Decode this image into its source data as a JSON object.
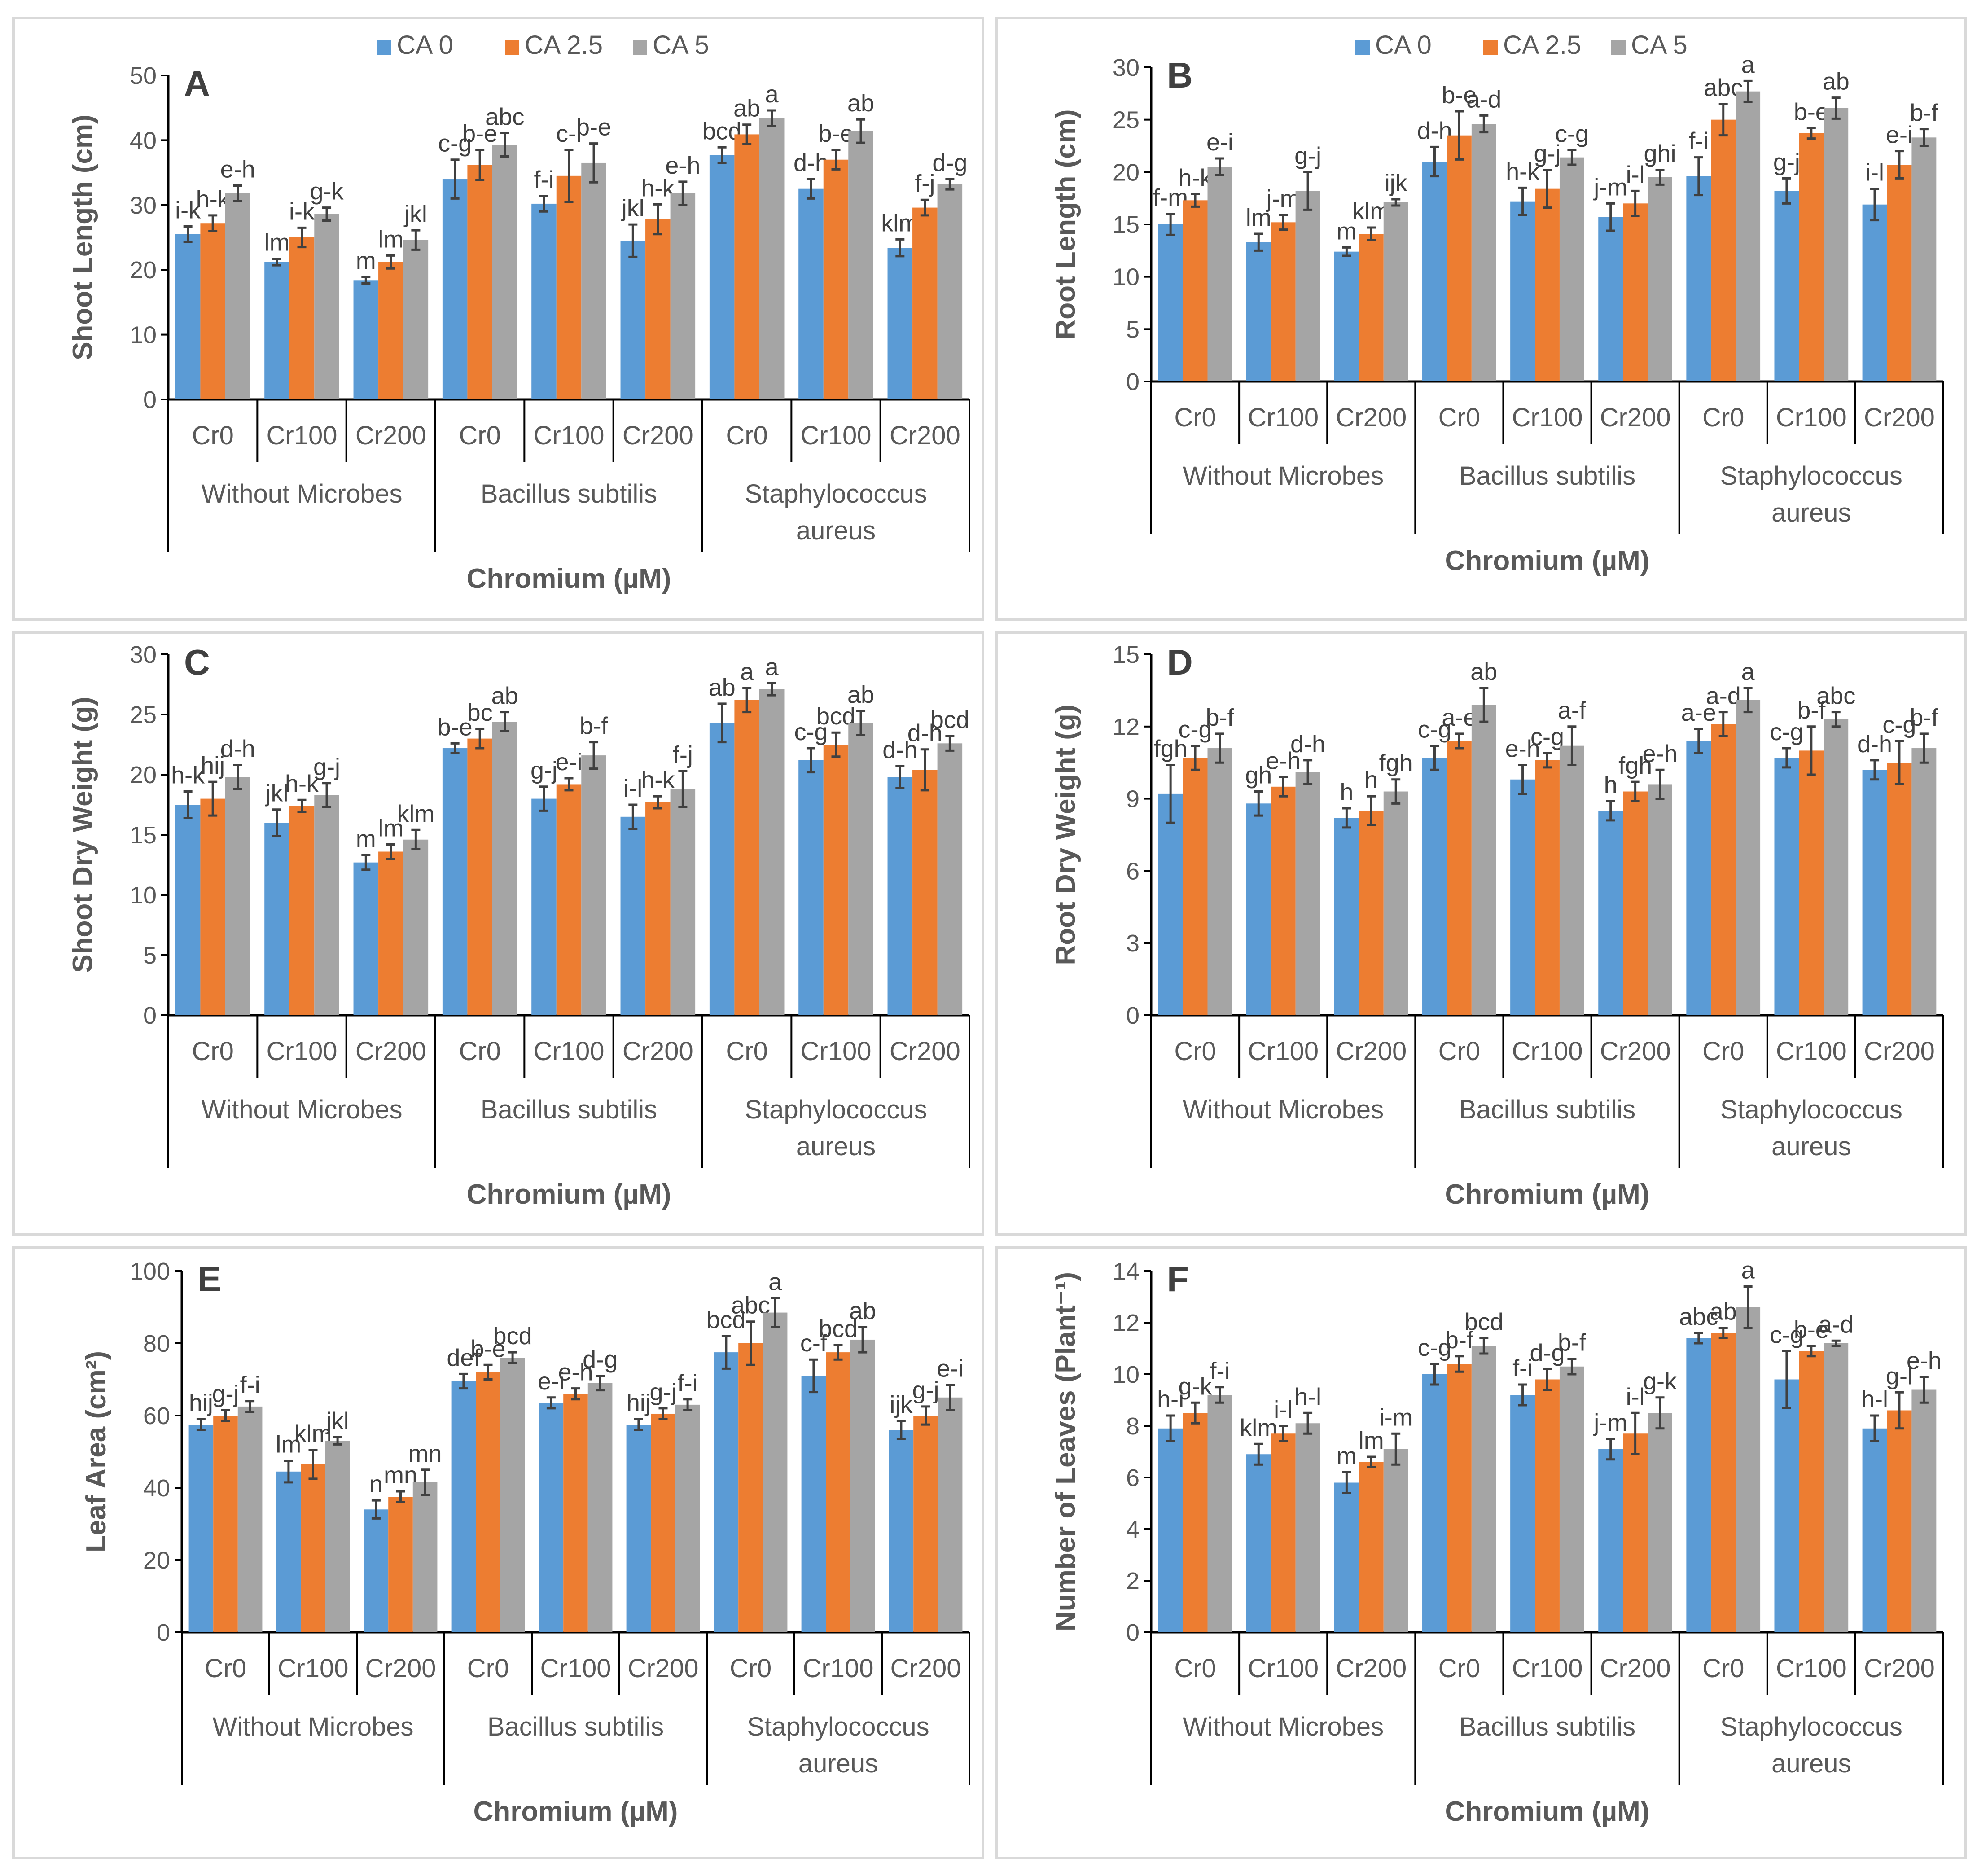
{
  "figure": {
    "colors": {
      "CA 0": "#5b9bd5",
      "CA 2.5": "#ed7d31",
      "CA 5": "#a5a5a5"
    },
    "legend_placement": "top-center"
  },
  "chart_data": [
    {
      "type": "bar",
      "panel": "A",
      "ylabel": "Shoot Length (cm)",
      "xlabel": "Chromium (µM)",
      "ylim": [
        0,
        50
      ],
      "yticks": [
        "0",
        "10",
        "20",
        "30",
        "40",
        "50"
      ],
      "legend": [
        "CA 0",
        "CA 2.5",
        "CA 5"
      ],
      "groups": [
        {
          "name": "Without Microbes",
          "lines": [
            "Without Microbes"
          ]
        },
        {
          "name": "Bacillus subtilis",
          "lines": [
            "Bacillus subtilis"
          ]
        },
        {
          "name": "Staphylococcus aureus",
          "lines": [
            "Staphylococcus",
            "aureus"
          ]
        }
      ],
      "categories": [
        "Cr0",
        "Cr100",
        "Cr200",
        "Cr0",
        "Cr100",
        "Cr200",
        "Cr0",
        "Cr100",
        "Cr200"
      ],
      "series": [
        {
          "name": "CA 0",
          "values": [
            25.5,
            21.2,
            18.4,
            34,
            30.2,
            24.5,
            37.7,
            32.5,
            23.4
          ],
          "errors": [
            1.2,
            0.5,
            0.5,
            3,
            1.2,
            2.5,
            1.2,
            1.5,
            1.3
          ],
          "labels": [
            "i-k",
            "lm",
            "m",
            "c-g",
            "f-i",
            "jkl",
            "bcd",
            "d-h",
            "klm"
          ]
        },
        {
          "name": "CA 2.5",
          "values": [
            27.2,
            25,
            21.2,
            36.2,
            34.5,
            27.8,
            40.9,
            37,
            29.6
          ],
          "errors": [
            1.2,
            1.5,
            1,
            2.3,
            4,
            2.3,
            1.5,
            1.5,
            1.2
          ],
          "labels": [
            "h-k",
            "i-k",
            "lm",
            "b-e",
            "c-i",
            "h-k",
            "ab",
            "b-e",
            "f-j"
          ]
        },
        {
          "name": "CA 5",
          "values": [
            31.8,
            28.6,
            24.6,
            39.3,
            36.5,
            31.8,
            43.4,
            41.4,
            33.2
          ],
          "errors": [
            1.2,
            1,
            1.5,
            1.8,
            3,
            1.8,
            1.2,
            1.8,
            0.8
          ],
          "labels": [
            "e-h",
            "g-k",
            "jkl",
            "abc",
            "b-e",
            "e-h",
            "a",
            "ab",
            "d-g"
          ]
        }
      ]
    },
    {
      "type": "bar",
      "panel": "B",
      "ylabel": "Root Length (cm)",
      "xlabel": "Chromium (µM)",
      "ylim": [
        0,
        30
      ],
      "yticks": [
        "0",
        "5",
        "10",
        "15",
        "20",
        "25",
        "30"
      ],
      "legend": [
        "CA 0",
        "CA 2.5",
        "CA 5"
      ],
      "groups": [
        {
          "name": "Without Microbes",
          "lines": [
            "Without Microbes"
          ]
        },
        {
          "name": "Bacillus subtilis",
          "lines": [
            "Bacillus subtilis"
          ]
        },
        {
          "name": "Staphylococcus aureus",
          "lines": [
            "Staphylococcus",
            "aureus"
          ]
        }
      ],
      "categories": [
        "Cr0",
        "Cr100",
        "Cr200",
        "Cr0",
        "Cr100",
        "Cr200",
        "Cr0",
        "Cr100",
        "Cr200"
      ],
      "series": [
        {
          "name": "CA 0",
          "values": [
            15,
            13.3,
            12.4,
            21,
            17.2,
            15.7,
            19.6,
            18.2,
            16.9
          ],
          "errors": [
            1,
            0.8,
            0.4,
            1.4,
            1.3,
            1.3,
            1.8,
            1.2,
            1.5
          ],
          "labels": [
            "f-m",
            "lm",
            "m",
            "d-h",
            "h-k",
            "j-m",
            "f-i",
            "g-j",
            "i-l"
          ]
        },
        {
          "name": "CA 2.5",
          "values": [
            17.3,
            15.2,
            14.1,
            23.5,
            18.4,
            17,
            25,
            23.7,
            20.7
          ],
          "errors": [
            0.6,
            0.7,
            0.6,
            2.3,
            1.8,
            1.2,
            1.5,
            0.5,
            1.3
          ],
          "labels": [
            "h-k",
            "j-m",
            "klm",
            "b-e",
            "g-j",
            "i-l",
            "abc",
            "b-e",
            "e-i"
          ]
        },
        {
          "name": "CA 5",
          "values": [
            20.5,
            18.2,
            17.1,
            24.6,
            21.4,
            19.5,
            27.7,
            26.1,
            23.3
          ],
          "errors": [
            0.8,
            1.8,
            0.3,
            0.8,
            0.7,
            0.7,
            1,
            1,
            0.8
          ],
          "labels": [
            "e-i",
            "g-j",
            "ijk",
            "a-d",
            "c-g",
            "ghi",
            "a",
            "ab",
            "b-f"
          ]
        }
      ]
    },
    {
      "type": "bar",
      "panel": "C",
      "ylabel": "Shoot Dry Weight (g)",
      "xlabel": "Chromium (µM)",
      "ylim": [
        0,
        30
      ],
      "yticks": [
        "0",
        "5",
        "10",
        "15",
        "20",
        "25",
        "30"
      ],
      "legend": [],
      "groups": [
        {
          "name": "Without Microbes",
          "lines": [
            "Without Microbes"
          ]
        },
        {
          "name": "Bacillus subtilis",
          "lines": [
            "Bacillus subtilis"
          ]
        },
        {
          "name": "Staphylococcus aureus",
          "lines": [
            "Staphylococcus",
            "aureus"
          ]
        }
      ],
      "categories": [
        "Cr0",
        "Cr100",
        "Cr200",
        "Cr0",
        "Cr100",
        "Cr200",
        "Cr0",
        "Cr100",
        "Cr200"
      ],
      "series": [
        {
          "name": "CA 0",
          "values": [
            17.5,
            16,
            12.7,
            22.2,
            18,
            16.5,
            24.3,
            21.2,
            19.8
          ],
          "errors": [
            1.1,
            1.1,
            0.6,
            0.4,
            1,
            1,
            1.6,
            1,
            0.9
          ],
          "labels": [
            "h-k",
            "jkl",
            "m",
            "b-e",
            "g-j",
            "i-l",
            "ab",
            "c-g",
            "d-h"
          ]
        },
        {
          "name": "CA 2.5",
          "values": [
            18,
            17.4,
            13.6,
            23,
            19.2,
            17.7,
            26.2,
            22.5,
            20.4
          ],
          "errors": [
            1.4,
            0.5,
            0.6,
            0.8,
            0.5,
            0.5,
            1,
            1,
            1.7
          ],
          "labels": [
            "hij",
            "h-k",
            "lm",
            "bc",
            "e-i",
            "h-k",
            "a",
            "bcd",
            "d-h"
          ]
        },
        {
          "name": "CA 5",
          "values": [
            19.8,
            18.3,
            14.6,
            24.4,
            21.6,
            18.8,
            27.1,
            24.3,
            22.6
          ],
          "errors": [
            1,
            1,
            0.8,
            0.8,
            1.1,
            1.5,
            0.5,
            1,
            0.6
          ],
          "labels": [
            "d-h",
            "g-j",
            "klm",
            "ab",
            "b-f",
            "f-j",
            "a",
            "ab",
            "bcd"
          ]
        }
      ]
    },
    {
      "type": "bar",
      "panel": "D",
      "ylabel": "Root Dry Weight (g)",
      "xlabel": "Chromium (µM)",
      "ylim": [
        0,
        15
      ],
      "yticks": [
        "0",
        "3",
        "6",
        "9",
        "12",
        "15"
      ],
      "legend": [],
      "groups": [
        {
          "name": "Without Microbes",
          "lines": [
            "Without Microbes"
          ]
        },
        {
          "name": "Bacillus subtilis",
          "lines": [
            "Bacillus subtilis"
          ]
        },
        {
          "name": "Staphylococcus aureus",
          "lines": [
            "Staphylococcus",
            "aureus"
          ]
        }
      ],
      "categories": [
        "Cr0",
        "Cr100",
        "Cr200",
        "Cr0",
        "Cr100",
        "Cr200",
        "Cr0",
        "Cr100",
        "Cr200"
      ],
      "series": [
        {
          "name": "CA 0",
          "values": [
            9.2,
            8.8,
            8.2,
            10.7,
            9.8,
            8.5,
            11.4,
            10.7,
            10.2
          ],
          "errors": [
            1.2,
            0.5,
            0.4,
            0.5,
            0.6,
            0.4,
            0.5,
            0.4,
            0.4
          ],
          "labels": [
            "fgh",
            "gh",
            "h",
            "c-g",
            "e-h",
            "h",
            "a-e",
            "c-g",
            "d-h"
          ]
        },
        {
          "name": "CA 2.5",
          "values": [
            10.7,
            9.5,
            8.5,
            11.4,
            10.6,
            9.3,
            12.1,
            11,
            10.5
          ],
          "errors": [
            0.5,
            0.4,
            0.6,
            0.3,
            0.3,
            0.4,
            0.5,
            1,
            0.9
          ],
          "labels": [
            "c-g",
            "e-h",
            "h",
            "a-e",
            "c-g",
            "fgh",
            "a-d",
            "b-f",
            "c-g"
          ]
        },
        {
          "name": "CA 5",
          "values": [
            11.1,
            10.1,
            9.3,
            12.9,
            11.2,
            9.6,
            13.1,
            12.3,
            11.1
          ],
          "errors": [
            0.6,
            0.5,
            0.5,
            0.7,
            0.8,
            0.6,
            0.5,
            0.3,
            0.6
          ],
          "labels": [
            "b-f",
            "d-h",
            "fgh",
            "ab",
            "a-f",
            "e-h",
            "a",
            "abc",
            "b-f"
          ]
        }
      ]
    },
    {
      "type": "bar",
      "panel": "E",
      "ylabel": "Leaf Area (cm²)",
      "xlabel": "Chromium (µM)",
      "ylim": [
        0,
        100
      ],
      "yticks": [
        "0",
        "20",
        "40",
        "60",
        "80",
        "100"
      ],
      "legend": [],
      "groups": [
        {
          "name": "Without Microbes",
          "lines": [
            "Without Microbes"
          ]
        },
        {
          "name": "Bacillus subtilis",
          "lines": [
            "Bacillus subtilis"
          ]
        },
        {
          "name": "Staphylococcus aureus",
          "lines": [
            "Staphylococcus",
            "aureus"
          ]
        }
      ],
      "categories": [
        "Cr0",
        "Cr100",
        "Cr200",
        "Cr0",
        "Cr100",
        "Cr200",
        "Cr0",
        "Cr100",
        "Cr200"
      ],
      "series": [
        {
          "name": "CA 0",
          "values": [
            57.5,
            44.5,
            34,
            69.5,
            63.5,
            57.5,
            77.5,
            71,
            56
          ],
          "errors": [
            1.5,
            3,
            2.5,
            2,
            1.5,
            1.5,
            4.5,
            4.5,
            2.5
          ],
          "labels": [
            "hij",
            "lm",
            "n",
            "def",
            "e-i",
            "hij",
            "bcd",
            "c-f",
            "ijk"
          ]
        },
        {
          "name": "CA 2.5",
          "values": [
            60,
            46.5,
            37.5,
            72,
            66,
            60.5,
            80,
            77.5,
            60
          ],
          "errors": [
            1.5,
            4,
            1.5,
            2,
            1.5,
            1.5,
            6,
            2,
            2.5
          ],
          "labels": [
            "g-j",
            "klm",
            "mn",
            "b-e",
            "e-h",
            "g-j",
            "abc",
            "bcd",
            "g-j"
          ]
        },
        {
          "name": "CA 5",
          "values": [
            62.5,
            53,
            41.5,
            76,
            69,
            63,
            88.5,
            81,
            65
          ],
          "errors": [
            1.5,
            1,
            3.5,
            1.5,
            2,
            1.5,
            4,
            3.5,
            3.5
          ],
          "labels": [
            "f-i",
            "jkl",
            "mn",
            "bcd",
            "d-g",
            "f-i",
            "a",
            "ab",
            "e-i"
          ]
        }
      ]
    },
    {
      "type": "bar",
      "panel": "F",
      "ylabel": "Number of Leaves (Plant⁻¹)",
      "xlabel": "Chromium (µM)",
      "ylim": [
        0,
        14
      ],
      "yticks": [
        "0",
        "2",
        "4",
        "6",
        "8",
        "10",
        "12",
        "14"
      ],
      "legend": [],
      "groups": [
        {
          "name": "Without Microbes",
          "lines": [
            "Without Microbes"
          ]
        },
        {
          "name": "Bacillus subtilis",
          "lines": [
            "Bacillus subtilis"
          ]
        },
        {
          "name": "Staphylococcus aureus",
          "lines": [
            "Staphylococcus",
            "aureus"
          ]
        }
      ],
      "categories": [
        "Cr0",
        "Cr100",
        "Cr200",
        "Cr0",
        "Cr100",
        "Cr200",
        "Cr0",
        "Cr100",
        "Cr200"
      ],
      "series": [
        {
          "name": "CA 0",
          "values": [
            7.9,
            6.9,
            5.8,
            10,
            9.2,
            7.1,
            11.4,
            9.8,
            7.9
          ],
          "errors": [
            0.5,
            0.4,
            0.4,
            0.4,
            0.4,
            0.4,
            0.2,
            1.1,
            0.5
          ],
          "labels": [
            "h-i",
            "klm",
            "m",
            "c-g",
            "f-i",
            "j-m",
            "abc",
            "c-g",
            "h-l"
          ]
        },
        {
          "name": "CA 2.5",
          "values": [
            8.5,
            7.7,
            6.6,
            10.4,
            9.8,
            7.7,
            11.6,
            10.9,
            8.6
          ],
          "errors": [
            0.4,
            0.3,
            0.2,
            0.3,
            0.4,
            0.8,
            0.2,
            0.2,
            0.7
          ],
          "labels": [
            "g-k",
            "i-l",
            "lm",
            "b-f",
            "d-g",
            "i-l",
            "ab",
            "b-e",
            "g-l"
          ]
        },
        {
          "name": "CA 5",
          "values": [
            9.2,
            8.1,
            7.1,
            11.1,
            10.3,
            8.5,
            12.6,
            11.2,
            9.4
          ],
          "errors": [
            0.3,
            0.4,
            0.6,
            0.3,
            0.3,
            0.6,
            0.8,
            0.1,
            0.5
          ],
          "labels": [
            "f-i",
            "h-l",
            "i-m",
            "bcd",
            "b-f",
            "g-k",
            "a",
            "a-d",
            "e-h"
          ]
        }
      ]
    }
  ]
}
